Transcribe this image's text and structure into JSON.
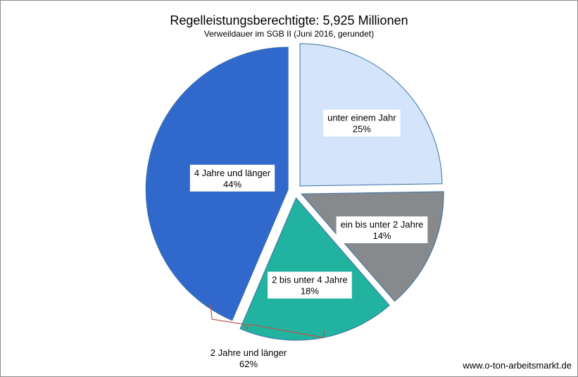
{
  "chart_data": {
    "type": "pie",
    "title": "Regelleistungsberechtigte: 5,925 Millionen",
    "subtitle": "Verweildauer  im SGB II (Juni 2016, gerundet)",
    "slices": [
      {
        "label": "unter einem Jahr",
        "value": 25,
        "value_label": "25%",
        "color": "#d3e4fb"
      },
      {
        "label": "ein bis unter 2 Jahre",
        "value": 14,
        "value_label": "14%",
        "color": "#868a8c"
      },
      {
        "label": "2 bis unter 4 Jahre",
        "value": 18,
        "value_label": "18%",
        "color": "#22b3a0"
      },
      {
        "label": "4 Jahre und länger",
        "value": 44,
        "value_label": "44%",
        "color": "#3168cc"
      }
    ],
    "bracket_annotation": {
      "label": "2 Jahre und länger",
      "value_label": "62%",
      "color": "#c0504d"
    },
    "legend": "none"
  },
  "footer": "www.o-ton-arbeitsmarkt.de"
}
